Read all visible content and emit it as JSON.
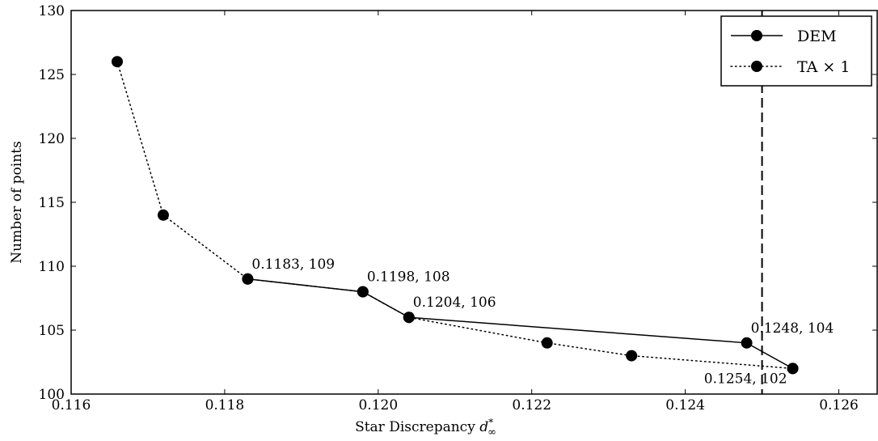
{
  "chart_data": {
    "type": "line",
    "xlabel": "Star Discrepancy d*∞",
    "xlabel_main": "Star Discrepancy ",
    "xlabel_symbol": "d",
    "xlabel_sup": "*",
    "xlabel_sub": "∞",
    "ylabel": "Number of points",
    "xlim": [
      0.116,
      0.1265
    ],
    "ylim": [
      100,
      130
    ],
    "x_ticks": [
      "0.116",
      "0.118",
      "0.120",
      "0.122",
      "0.124",
      "0.126"
    ],
    "x_tick_values": [
      0.116,
      0.118,
      0.12,
      0.122,
      0.124,
      0.126
    ],
    "y_ticks": [
      "100",
      "105",
      "110",
      "115",
      "120",
      "125",
      "130"
    ],
    "y_tick_values": [
      100,
      105,
      110,
      115,
      120,
      125,
      130
    ],
    "grid": false,
    "legend_position": "top-right",
    "series": [
      {
        "name": "DEM",
        "style": "solid",
        "color": "#000000",
        "points": [
          {
            "x": 0.1183,
            "y": 109
          },
          {
            "x": 0.1198,
            "y": 108
          },
          {
            "x": 0.1204,
            "y": 106
          },
          {
            "x": 0.1248,
            "y": 104
          },
          {
            "x": 0.1254,
            "y": 102
          }
        ]
      },
      {
        "name": "TA × 1",
        "style": "dotted",
        "color": "#000000",
        "points": [
          {
            "x": 0.1166,
            "y": 126
          },
          {
            "x": 0.1172,
            "y": 114
          },
          {
            "x": 0.1183,
            "y": 109
          },
          {
            "x": 0.1198,
            "y": 108
          },
          {
            "x": 0.1204,
            "y": 106
          },
          {
            "x": 0.1222,
            "y": 104
          },
          {
            "x": 0.1233,
            "y": 103
          },
          {
            "x": 0.1254,
            "y": 102
          }
        ]
      }
    ],
    "reference_line": {
      "x": 0.125,
      "style": "dashed"
    },
    "annotations": [
      {
        "text": "0.1183, 109",
        "x": 0.1183,
        "y": 109,
        "anchor": "above-right"
      },
      {
        "text": "0.1198, 108",
        "x": 0.1198,
        "y": 108,
        "anchor": "above-right"
      },
      {
        "text": "0.1204, 106",
        "x": 0.1204,
        "y": 106,
        "anchor": "above-right"
      },
      {
        "text": "0.1248, 104",
        "x": 0.1248,
        "y": 104,
        "anchor": "above-right"
      },
      {
        "text": "0.1254, 102",
        "x": 0.1254,
        "y": 102,
        "anchor": "below-left"
      }
    ]
  }
}
